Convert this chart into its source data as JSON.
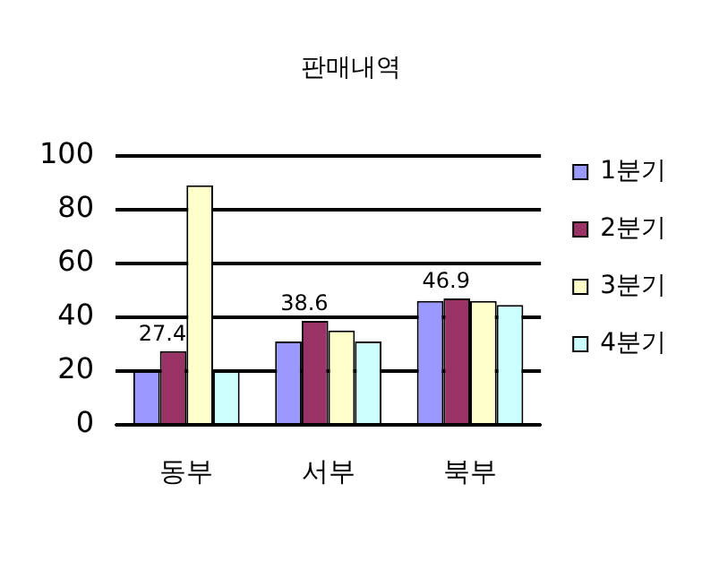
{
  "chart_data": {
    "type": "bar",
    "title": "판매내역",
    "categories": [
      "동부",
      "서부",
      "북부"
    ],
    "series": [
      {
        "name": "1분기",
        "color": "#9999ff",
        "values": [
          20,
          31,
          46
        ]
      },
      {
        "name": "2분기",
        "color": "#993366",
        "values": [
          27.4,
          38.6,
          46.9
        ],
        "value_labels": [
          "27.4",
          "38.6",
          "46.9"
        ]
      },
      {
        "name": "3분기",
        "color": "#ffffcc",
        "values": [
          89,
          35,
          46
        ]
      },
      {
        "name": "4분기",
        "color": "#ccffff",
        "values": [
          20,
          31,
          44.5
        ]
      }
    ],
    "ylim": [
      0,
      100
    ],
    "yticks": [
      0,
      20,
      40,
      60,
      80,
      100
    ],
    "grid": "y",
    "legend": "right"
  }
}
